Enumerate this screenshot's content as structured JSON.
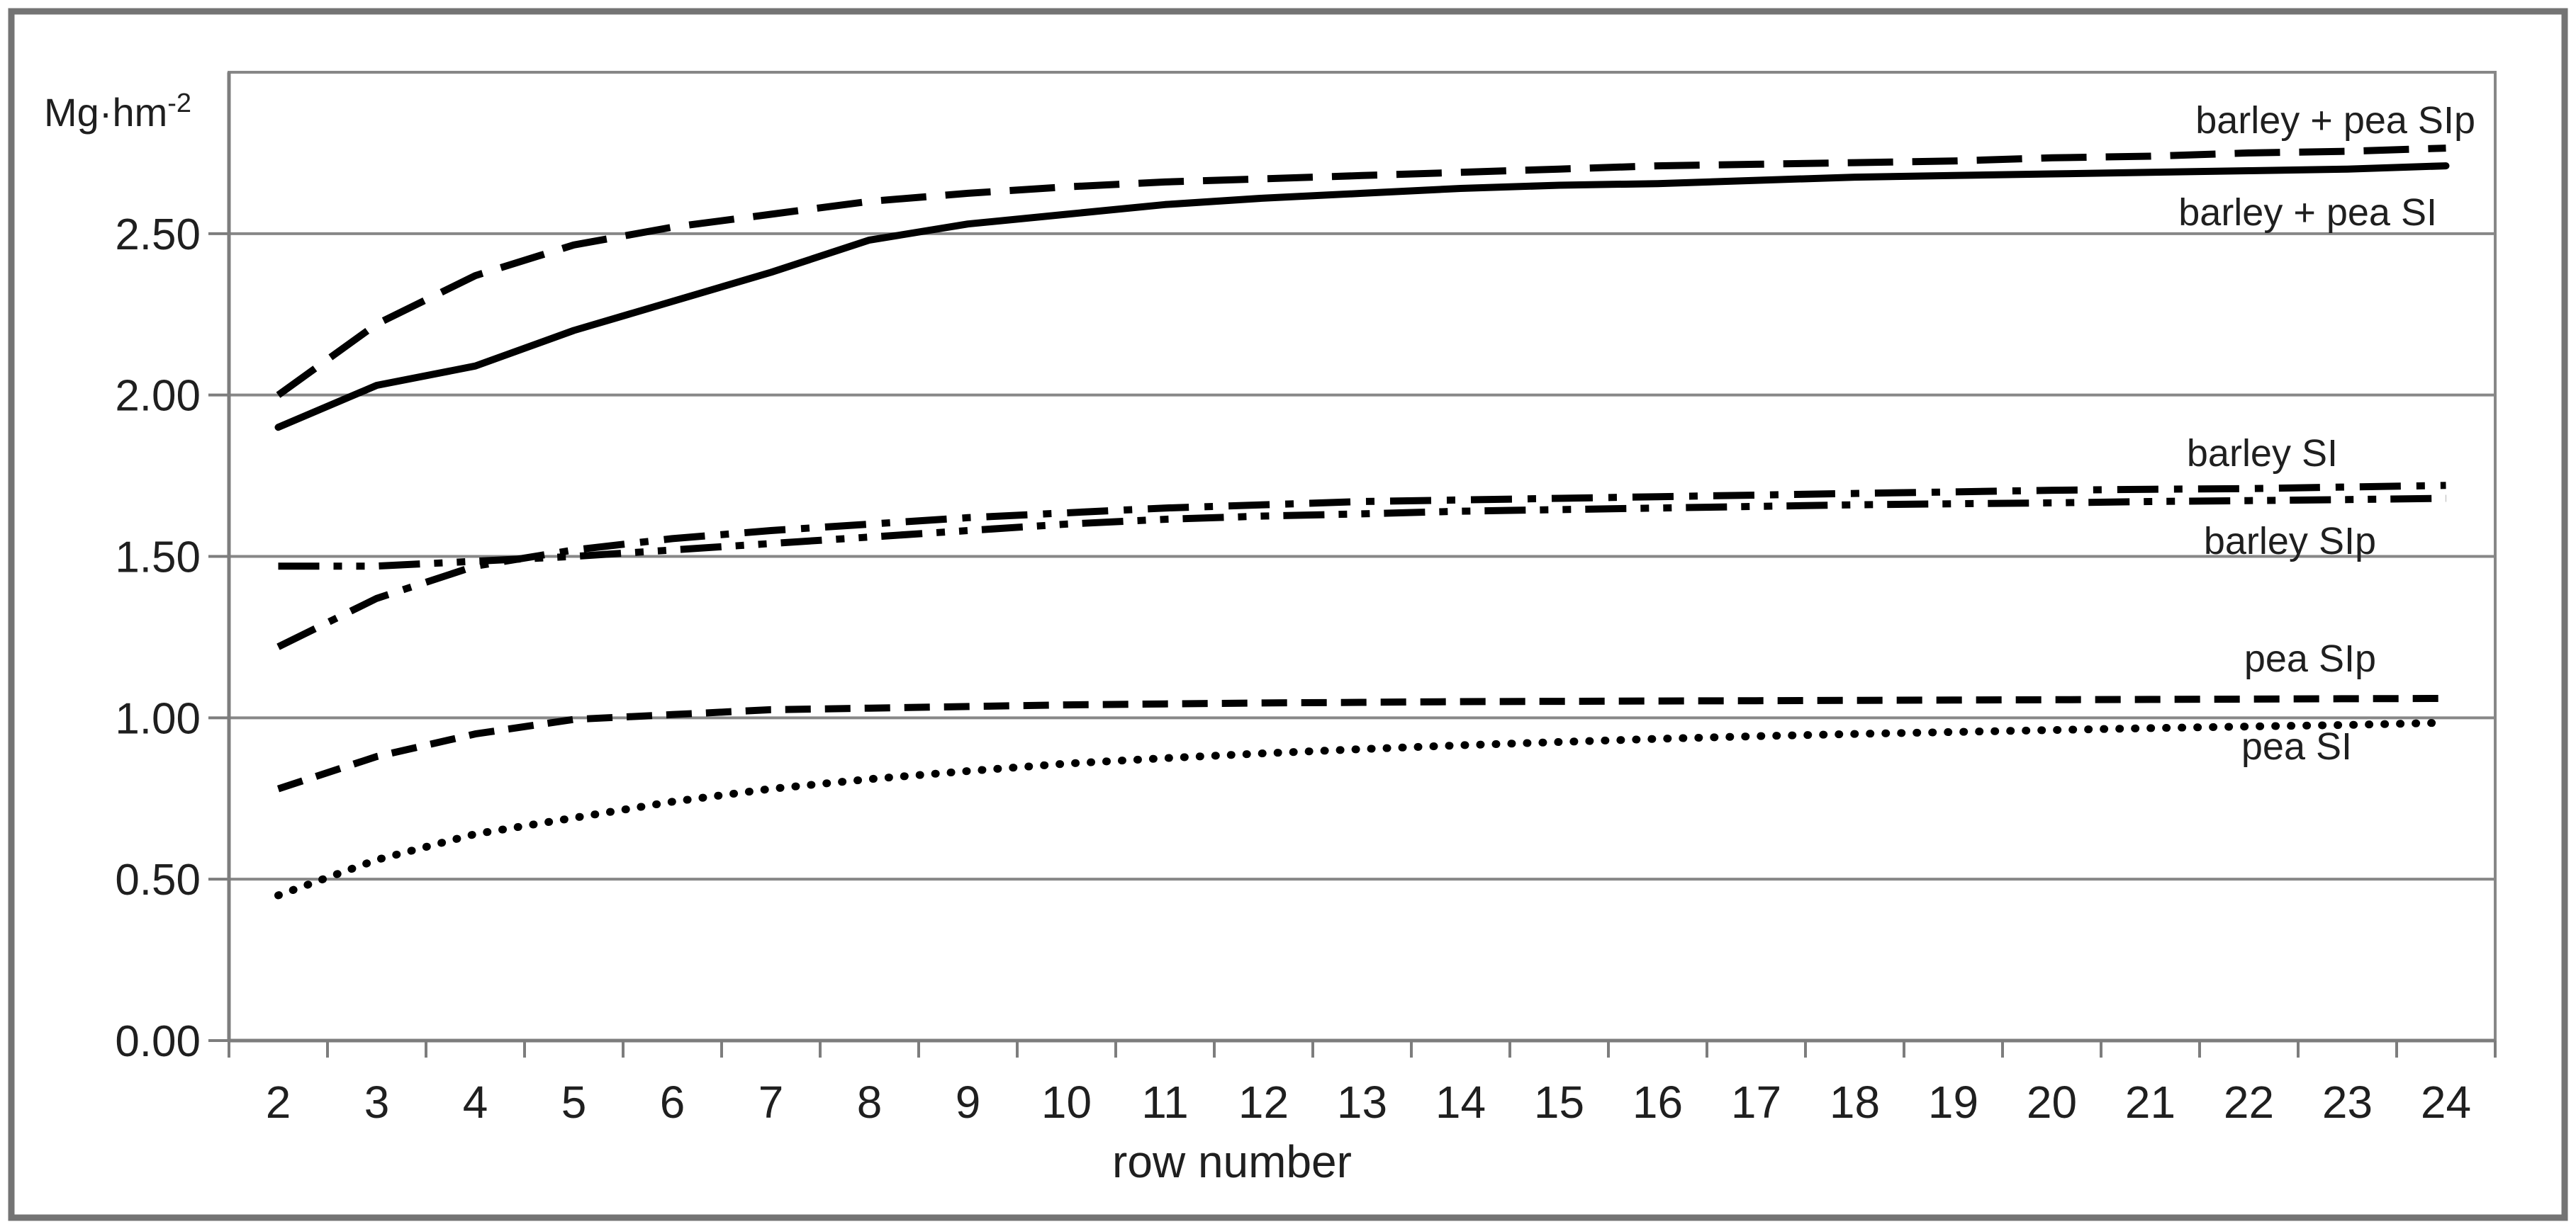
{
  "figure": {
    "background": "#ffffff",
    "border_color": "#747474",
    "gridline_color": "#878787",
    "axis_color": "#7d7d7d",
    "text_color": "#1f1f1f",
    "series_color": "#000000"
  },
  "chart_data": {
    "type": "line",
    "title": "",
    "xlabel": "row number",
    "ylabel": "Mg·hm⁻²",
    "y_axis": {
      "unit_base": "Mg·hm",
      "unit_exponent": "-2",
      "tick_labels": [
        "0.00",
        "0.50",
        "1.00",
        "1.50",
        "2.00",
        "2.50"
      ],
      "tick_values": [
        0.0,
        0.5,
        1.0,
        1.5,
        2.0,
        2.5
      ],
      "gridline_values": [
        0.5,
        1.0,
        1.5,
        2.0,
        2.5
      ],
      "ylim": [
        0,
        3.0
      ]
    },
    "x_axis": {
      "title": "row number",
      "categories": [
        2,
        3,
        4,
        5,
        6,
        7,
        8,
        9,
        10,
        11,
        12,
        13,
        14,
        15,
        16,
        17,
        18,
        19,
        20,
        21,
        22,
        23,
        24
      ]
    },
    "grid": "horizontal",
    "legend_position": "inline-right-labels",
    "series": [
      {
        "name": "barley + pea SIp",
        "line_style": "long-dash",
        "color": "#000000",
        "values": [
          2.0,
          2.22,
          2.37,
          2.465,
          2.52,
          2.56,
          2.6,
          2.625,
          2.645,
          2.66,
          2.67,
          2.68,
          2.69,
          2.7,
          2.71,
          2.715,
          2.72,
          2.725,
          2.735,
          2.74,
          2.75,
          2.755,
          2.765
        ]
      },
      {
        "name": "barley + pea SI",
        "line_style": "solid",
        "color": "#000000",
        "values": [
          1.9,
          2.03,
          2.09,
          2.2,
          2.29,
          2.38,
          2.48,
          2.53,
          2.56,
          2.59,
          2.61,
          2.625,
          2.64,
          2.65,
          2.655,
          2.665,
          2.675,
          2.68,
          2.685,
          2.69,
          2.695,
          2.7,
          2.71
        ]
      },
      {
        "name": "barley SI",
        "line_style": "dash-dot",
        "color": "#000000",
        "values": [
          1.22,
          1.37,
          1.47,
          1.52,
          1.555,
          1.58,
          1.6,
          1.62,
          1.635,
          1.65,
          1.66,
          1.67,
          1.675,
          1.68,
          1.685,
          1.69,
          1.695,
          1.7,
          1.705,
          1.708,
          1.71,
          1.715,
          1.72
        ]
      },
      {
        "name": "barley SIp",
        "line_style": "dash-dot-dot",
        "color": "#000000",
        "values": [
          1.47,
          1.47,
          1.485,
          1.5,
          1.52,
          1.54,
          1.56,
          1.58,
          1.6,
          1.615,
          1.625,
          1.632,
          1.64,
          1.645,
          1.65,
          1.655,
          1.66,
          1.663,
          1.666,
          1.67,
          1.673,
          1.676,
          1.68
        ]
      },
      {
        "name": "pea SIp",
        "line_style": "dash",
        "color": "#000000",
        "values": [
          0.78,
          0.88,
          0.95,
          0.995,
          1.01,
          1.025,
          1.03,
          1.035,
          1.04,
          1.043,
          1.046,
          1.048,
          1.05,
          1.051,
          1.052,
          1.053,
          1.054,
          1.055,
          1.056,
          1.057,
          1.058,
          1.059,
          1.06
        ]
      },
      {
        "name": "pea SI",
        "line_style": "dotted",
        "color": "#000000",
        "values": [
          0.45,
          0.56,
          0.64,
          0.69,
          0.74,
          0.78,
          0.81,
          0.835,
          0.858,
          0.875,
          0.89,
          0.903,
          0.915,
          0.925,
          0.935,
          0.943,
          0.95,
          0.956,
          0.962,
          0.968,
          0.973,
          0.978,
          0.985
        ]
      }
    ]
  }
}
